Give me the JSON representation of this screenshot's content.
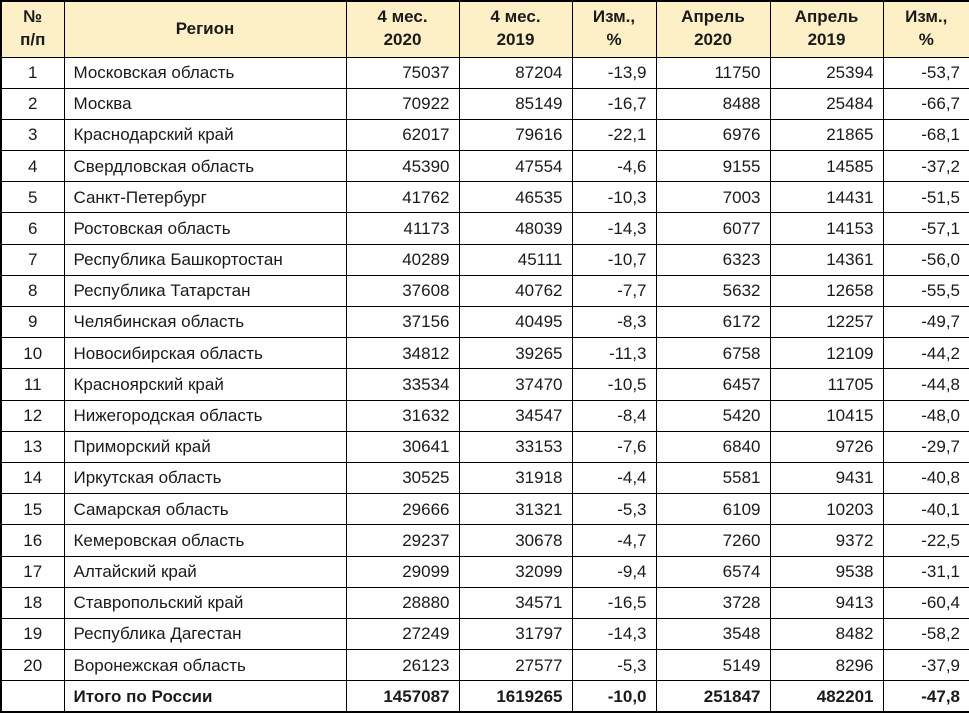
{
  "chart_data": {
    "type": "table",
    "title": "",
    "columns": [
      {
        "key": "num",
        "label": "№\nп/п"
      },
      {
        "key": "region",
        "label": "Регион"
      },
      {
        "key": "m2020",
        "label": "4 мес.\n2020"
      },
      {
        "key": "m2019",
        "label": "4 мес.\n2019"
      },
      {
        "key": "chg1",
        "label": "Изм.,\n%"
      },
      {
        "key": "apr2020",
        "label": "Апрель\n2020"
      },
      {
        "key": "apr2019",
        "label": "Апрель\n2019"
      },
      {
        "key": "chg2",
        "label": "Изм.,\n%"
      }
    ],
    "rows": [
      {
        "num": "1",
        "region": "Московская область",
        "values": [
          "75037",
          "87204",
          "-13,9",
          "11750",
          "25394",
          "-53,7"
        ]
      },
      {
        "num": "2",
        "region": "Москва",
        "values": [
          "70922",
          "85149",
          "-16,7",
          "8488",
          "25484",
          "-66,7"
        ]
      },
      {
        "num": "3",
        "region": "Краснодарский край",
        "values": [
          "62017",
          "79616",
          "-22,1",
          "6976",
          "21865",
          "-68,1"
        ]
      },
      {
        "num": "4",
        "region": "Свердловская область",
        "values": [
          "45390",
          "47554",
          "-4,6",
          "9155",
          "14585",
          "-37,2"
        ]
      },
      {
        "num": "5",
        "region": "Санкт-Петербург",
        "values": [
          "41762",
          "46535",
          "-10,3",
          "7003",
          "14431",
          "-51,5"
        ]
      },
      {
        "num": "6",
        "region": "Ростовская область",
        "values": [
          "41173",
          "48039",
          "-14,3",
          "6077",
          "14153",
          "-57,1"
        ]
      },
      {
        "num": "7",
        "region": "Республика Башкортостан",
        "values": [
          "40289",
          "45111",
          "-10,7",
          "6323",
          "14361",
          "-56,0"
        ]
      },
      {
        "num": "8",
        "region": "Республика Татарстан",
        "values": [
          "37608",
          "40762",
          "-7,7",
          "5632",
          "12658",
          "-55,5"
        ]
      },
      {
        "num": "9",
        "region": "Челябинская область",
        "values": [
          "37156",
          "40495",
          "-8,3",
          "6172",
          "12257",
          "-49,7"
        ]
      },
      {
        "num": "10",
        "region": "Новосибирская область",
        "values": [
          "34812",
          "39265",
          "-11,3",
          "6758",
          "12109",
          "-44,2"
        ]
      },
      {
        "num": "11",
        "region": "Красноярский край",
        "values": [
          "33534",
          "37470",
          "-10,5",
          "6457",
          "11705",
          "-44,8"
        ]
      },
      {
        "num": "12",
        "region": "Нижегородская область",
        "values": [
          "31632",
          "34547",
          "-8,4",
          "5420",
          "10415",
          "-48,0"
        ]
      },
      {
        "num": "13",
        "region": "Приморский край",
        "values": [
          "30641",
          "33153",
          "-7,6",
          "6840",
          "9726",
          "-29,7"
        ]
      },
      {
        "num": "14",
        "region": "Иркутская область",
        "values": [
          "30525",
          "31918",
          "-4,4",
          "5581",
          "9431",
          "-40,8"
        ]
      },
      {
        "num": "15",
        "region": "Самарская область",
        "values": [
          "29666",
          "31321",
          "-5,3",
          "6109",
          "10203",
          "-40,1"
        ]
      },
      {
        "num": "16",
        "region": "Кемеровская область",
        "values": [
          "29237",
          "30678",
          "-4,7",
          "7260",
          "9372",
          "-22,5"
        ]
      },
      {
        "num": "17",
        "region": "Алтайский край",
        "values": [
          "29099",
          "32099",
          "-9,4",
          "6574",
          "9538",
          "-31,1"
        ]
      },
      {
        "num": "18",
        "region": "Ставропольский край",
        "values": [
          "28880",
          "34571",
          "-16,5",
          "3728",
          "9413",
          "-60,4"
        ]
      },
      {
        "num": "19",
        "region": "Республика Дагестан",
        "values": [
          "27249",
          "31797",
          "-14,3",
          "3548",
          "8482",
          "-58,2"
        ]
      },
      {
        "num": "20",
        "region": "Воронежская область",
        "values": [
          "26123",
          "27577",
          "-5,3",
          "5149",
          "8296",
          "-37,9"
        ]
      }
    ],
    "total_row": {
      "num": "",
      "region": "Итого по России",
      "values": [
        "1457087",
        "1619265",
        "-10,0",
        "251847",
        "482201",
        "-47,8"
      ]
    },
    "layout": {
      "header_fill": "#FDF0C6",
      "row_fill": "#FFFFFF",
      "border_color": "#000000",
      "grid": "on"
    }
  }
}
